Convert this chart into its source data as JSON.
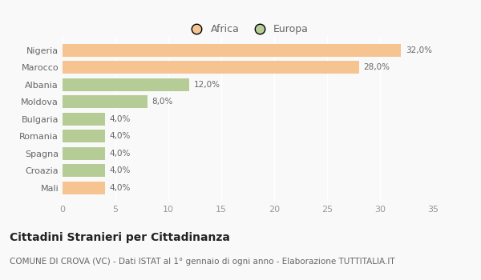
{
  "categories": [
    "Nigeria",
    "Marocco",
    "Albania",
    "Moldova",
    "Bulgaria",
    "Romania",
    "Spagna",
    "Croazia",
    "Mali"
  ],
  "values": [
    32.0,
    28.0,
    12.0,
    8.0,
    4.0,
    4.0,
    4.0,
    4.0,
    4.0
  ],
  "colors": [
    "#f5c491",
    "#f5c491",
    "#b5cc96",
    "#b5cc96",
    "#b5cc96",
    "#b5cc96",
    "#b5cc96",
    "#b5cc96",
    "#f5c491"
  ],
  "labels": [
    "32,0%",
    "28,0%",
    "12,0%",
    "8,0%",
    "4,0%",
    "4,0%",
    "4,0%",
    "4,0%",
    "4,0%"
  ],
  "xlim": [
    0,
    35
  ],
  "xticks": [
    0,
    5,
    10,
    15,
    20,
    25,
    30,
    35
  ],
  "legend_africa_color": "#f5c491",
  "legend_europa_color": "#b5cc96",
  "title": "Cittadini Stranieri per Cittadinanza",
  "subtitle": "COMUNE DI CROVA (VC) - Dati ISTAT al 1° gennaio di ogni anno - Elaborazione TUTTITALIA.IT",
  "bg_color": "#f9f9f9",
  "grid_color": "#ffffff",
  "bar_height": 0.75,
  "label_fontsize": 7.5,
  "title_fontsize": 10,
  "subtitle_fontsize": 7.5,
  "ytick_fontsize": 8,
  "xtick_fontsize": 8,
  "legend_fontsize": 9
}
